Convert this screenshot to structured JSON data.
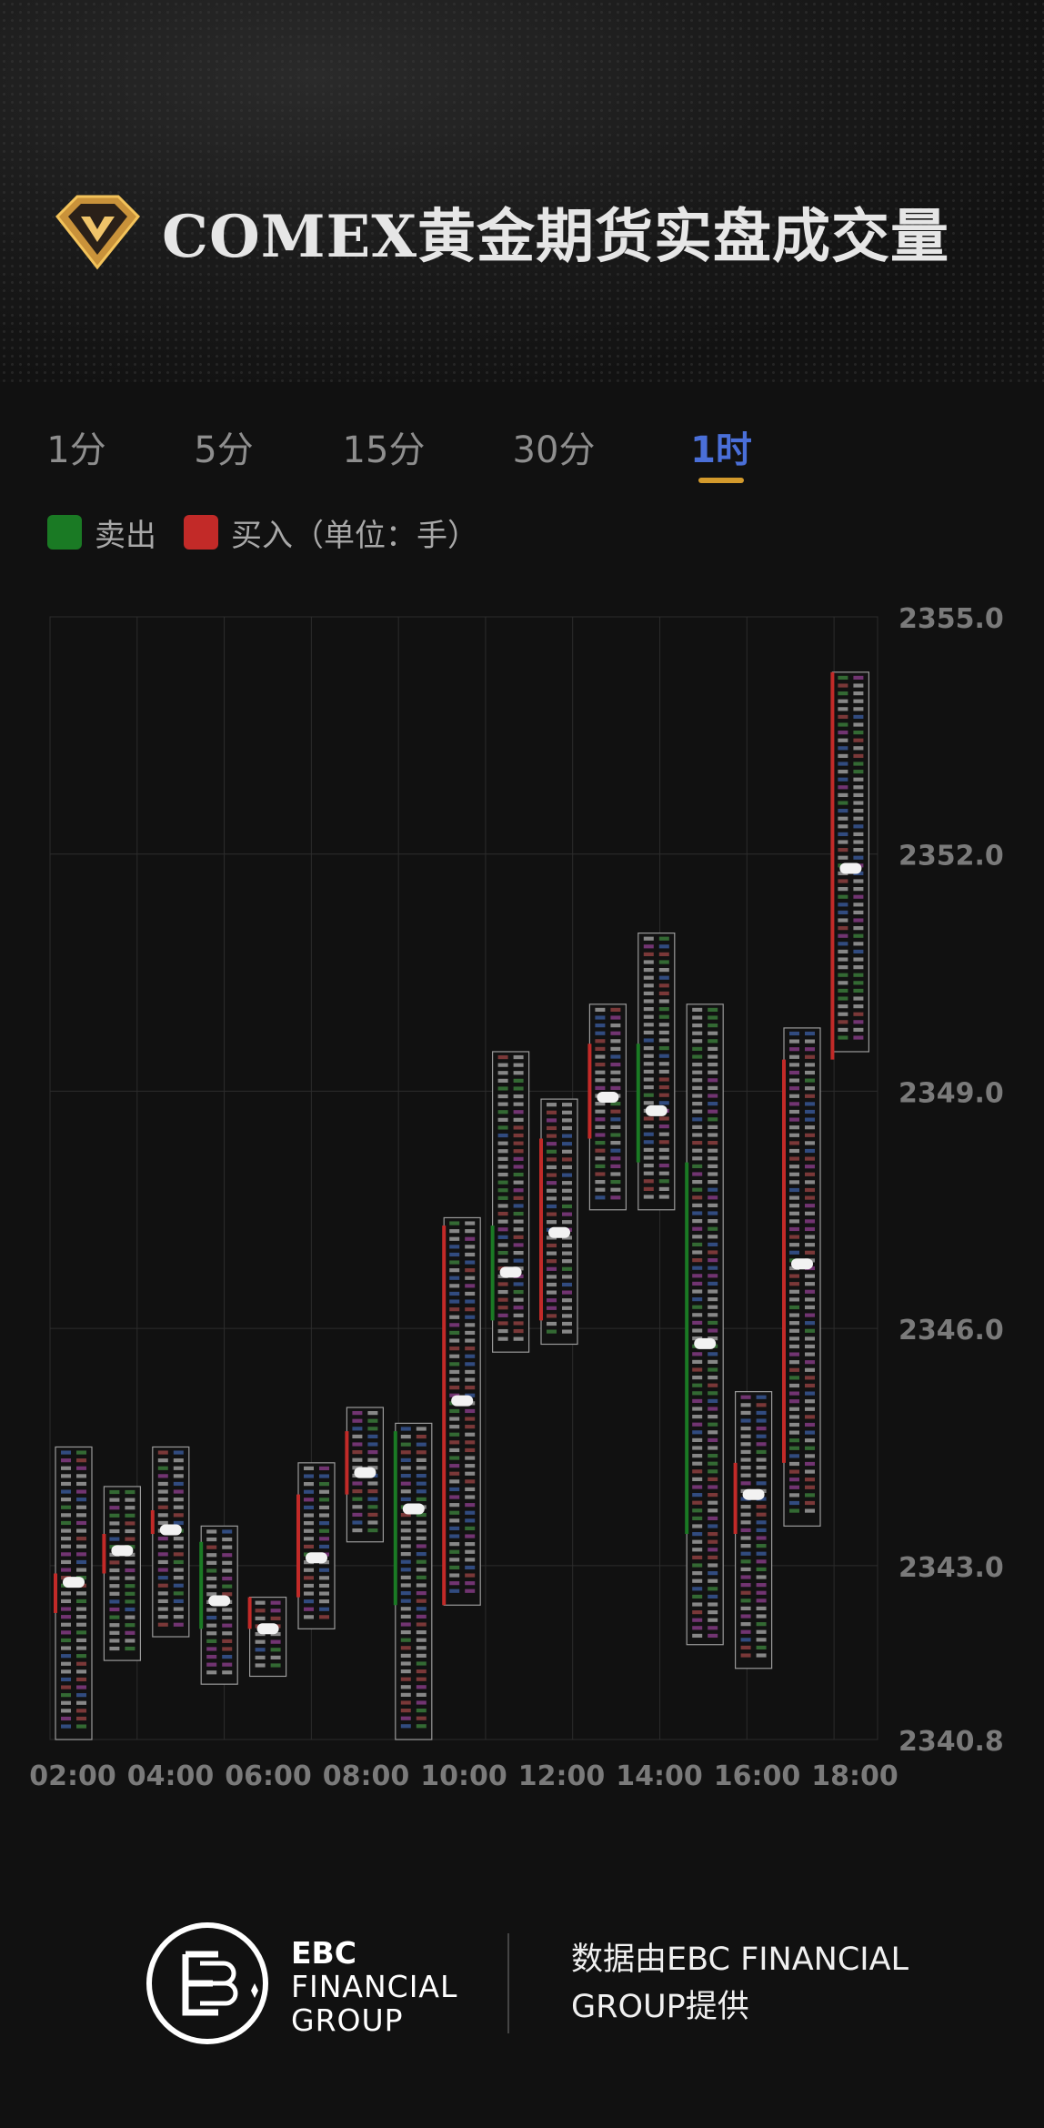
{
  "header": {
    "title": "COMEX黄金期货实盘成交量"
  },
  "tabs": [
    {
      "label": "1分",
      "active": false
    },
    {
      "label": "5分",
      "active": false
    },
    {
      "label": "15分",
      "active": false
    },
    {
      "label": "30分",
      "active": false
    },
    {
      "label": "1时",
      "active": true
    }
  ],
  "legend": {
    "sell_label": "卖出",
    "buy_label": "买入（单位：手）",
    "sell_color": "#1a7a24",
    "buy_color": "#c22a28"
  },
  "chart_data": {
    "type": "footprint",
    "ylim": [
      2340.8,
      2355.0
    ],
    "y_ticks": [
      "2355.0",
      "2352.0",
      "2349.0",
      "2346.0",
      "2343.0",
      "2340.8"
    ],
    "x_ticks": [
      "02:00",
      "04:00",
      "06:00",
      "08:00",
      "10:00",
      "12:00",
      "14:00",
      "16:00",
      "18:00"
    ],
    "grid": true,
    "up_color": "#c22a28",
    "down_color": "#1a7a24",
    "bars": [
      {
        "time": "01:00",
        "open": 2342.4,
        "high": 2344.5,
        "low": 2340.7,
        "close": 2342.9
      },
      {
        "time": "02:00",
        "open": 2342.9,
        "high": 2344.0,
        "low": 2341.8,
        "close": 2343.4
      },
      {
        "time": "03:00",
        "open": 2343.4,
        "high": 2344.5,
        "low": 2342.1,
        "close": 2343.7
      },
      {
        "time": "04:00",
        "open": 2343.3,
        "high": 2343.5,
        "low": 2341.5,
        "close": 2342.2
      },
      {
        "time": "05:00",
        "open": 2342.2,
        "high": 2342.6,
        "low": 2341.6,
        "close": 2342.6
      },
      {
        "time": "06:00",
        "open": 2342.6,
        "high": 2344.3,
        "low": 2342.2,
        "close": 2343.9
      },
      {
        "time": "07:00",
        "open": 2343.9,
        "high": 2345.0,
        "low": 2343.3,
        "close": 2344.7
      },
      {
        "time": "08:00",
        "open": 2344.7,
        "high": 2344.8,
        "low": 2340.7,
        "close": 2342.5
      },
      {
        "time": "09:00",
        "open": 2342.5,
        "high": 2347.4,
        "low": 2342.5,
        "close": 2347.3
      },
      {
        "time": "10:00",
        "open": 2347.3,
        "high": 2349.5,
        "low": 2345.7,
        "close": 2346.1
      },
      {
        "time": "11:00",
        "open": 2346.1,
        "high": 2348.9,
        "low": 2345.8,
        "close": 2348.4
      },
      {
        "time": "12:00",
        "open": 2348.4,
        "high": 2350.1,
        "low": 2347.5,
        "close": 2349.6
      },
      {
        "time": "13:00",
        "open": 2349.6,
        "high": 2351.0,
        "low": 2347.5,
        "close": 2348.1
      },
      {
        "time": "14:00",
        "open": 2348.1,
        "high": 2350.1,
        "low": 2342.0,
        "close": 2343.4
      },
      {
        "time": "15:00",
        "open": 2343.4,
        "high": 2345.2,
        "low": 2341.7,
        "close": 2344.3
      },
      {
        "time": "16:00",
        "open": 2344.3,
        "high": 2349.8,
        "low": 2343.5,
        "close": 2349.4
      },
      {
        "time": "17:00",
        "open": 2349.4,
        "high": 2354.3,
        "low": 2349.5,
        "close": 2354.3
      }
    ]
  },
  "footer": {
    "brand_line1": "EBC",
    "brand_line2": "FINANCIAL",
    "brand_line3": "GROUP",
    "provider_line1": "数据由EBC FINANCIAL",
    "provider_line2": "GROUP提供"
  }
}
